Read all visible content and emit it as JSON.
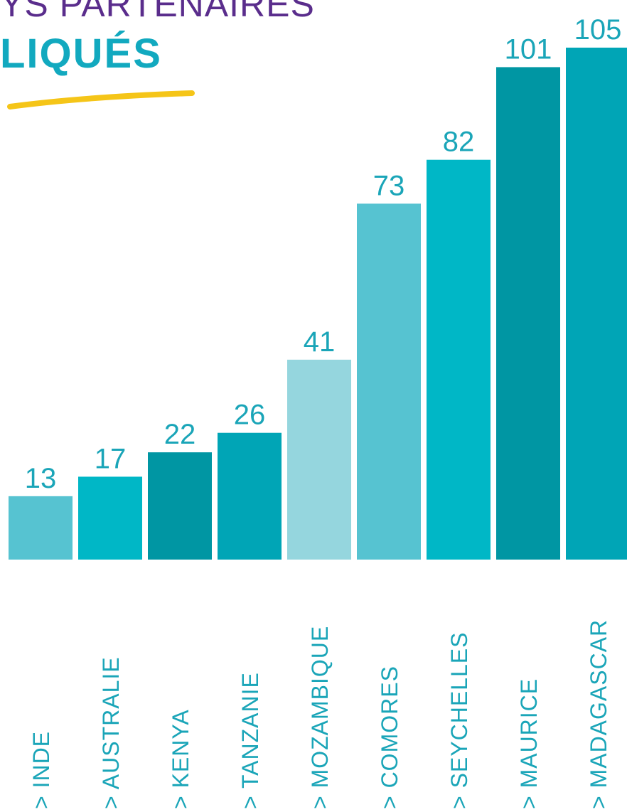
{
  "header": {
    "title_line1": "YS PARTENAIRES",
    "title_line2": "LIQUÉS"
  },
  "colors": {
    "title_purple": "#5a2d8c",
    "title_teal": "#12a9bf",
    "underline_yellow": "#f5c518",
    "label_teal": "#1aa5b8"
  },
  "chart_data": {
    "type": "bar",
    "categories": [
      "> INDE",
      "> AUSTRALIE",
      "> KENYA",
      "> TANZANIE",
      "> MOZAMBIQUE",
      "> COMORES",
      "> SEYCHELLES",
      "> MAURICE",
      "> MADAGASCAR"
    ],
    "values": [
      13,
      17,
      22,
      26,
      41,
      73,
      82,
      101,
      105
    ],
    "value_labels": [
      "13",
      "17",
      "22",
      "26",
      "41",
      "73",
      "82",
      "101",
      "105"
    ],
    "bar_colors": [
      "#56c3d1",
      "#00b7c6",
      "#0096a3",
      "#00a5b6",
      "#95d6de",
      "#56c3d1",
      "#00b7c6",
      "#0096a3",
      "#00a5b6"
    ],
    "ylim": [
      0,
      105
    ],
    "grid": false,
    "legend": "none",
    "xlabel": "",
    "ylabel": ""
  }
}
